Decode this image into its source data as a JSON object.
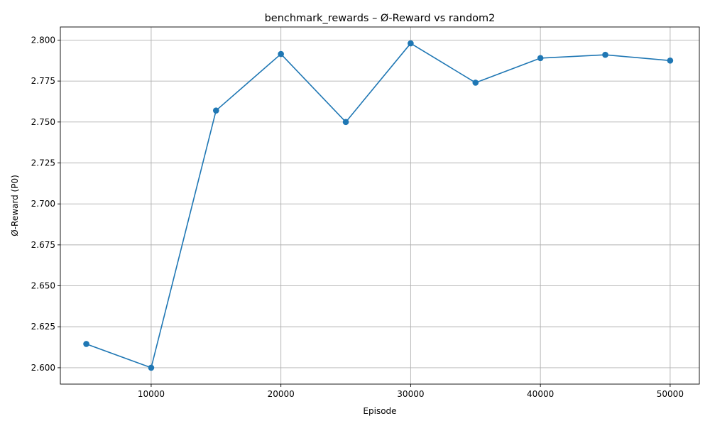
{
  "chart_data": {
    "type": "line",
    "title": "benchmark_rewards – Ø-Reward vs random2",
    "xlabel": "Episode",
    "ylabel": "Ø-Reward (P0)",
    "x": [
      5000,
      10000,
      15000,
      20000,
      25000,
      30000,
      35000,
      40000,
      45000,
      50000
    ],
    "series": [
      {
        "values": [
          2.6145,
          2.6,
          2.757,
          2.7915,
          2.75,
          2.798,
          2.774,
          2.789,
          2.791,
          2.7875
        ],
        "color": "#1f77b4",
        "marker": "circle"
      }
    ],
    "xlim": [
      3000,
      52250
    ],
    "ylim": [
      2.59,
      2.808
    ],
    "xticks": [
      10000,
      20000,
      30000,
      40000,
      50000
    ],
    "xtick_labels": [
      "10000",
      "20000",
      "30000",
      "40000",
      "50000"
    ],
    "yticks": [
      2.6,
      2.625,
      2.65,
      2.675,
      2.7,
      2.725,
      2.75,
      2.775,
      2.8
    ],
    "ytick_labels": [
      "2.600",
      "2.625",
      "2.650",
      "2.675",
      "2.700",
      "2.725",
      "2.750",
      "2.775",
      "2.800"
    ],
    "grid": true
  }
}
